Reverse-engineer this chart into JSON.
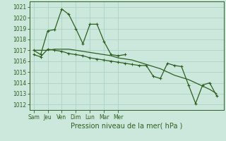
{
  "xlabel": "Pression niveau de la mer( hPa )",
  "bg_color": "#cce8dc",
  "grid_color": "#aad4c4",
  "line_color": "#2d6020",
  "ylim": [
    1011.5,
    1021.5
  ],
  "yticks": [
    1012,
    1013,
    1014,
    1015,
    1016,
    1017,
    1018,
    1019,
    1020,
    1021
  ],
  "xtick_labels": [
    "Sam",
    "Jeu",
    "Ven",
    "Dim",
    "Lun",
    "Mar",
    "Mer"
  ],
  "xtick_positions": [
    0,
    2,
    4,
    6,
    8,
    10,
    12
  ],
  "xlim": [
    -0.3,
    13.5
  ],
  "series_jagged_upper_x": [
    0,
    1,
    2,
    3,
    4,
    5,
    6,
    7,
    8,
    9,
    10,
    11,
    12,
    13
  ],
  "series_jagged_upper_y": [
    1017.0,
    1016.6,
    1018.8,
    1018.9,
    1020.8,
    1020.3,
    1019.0,
    1017.6,
    1019.4,
    1019.4,
    1017.8,
    1016.6,
    1016.5,
    1016.6
  ],
  "series_smooth_x": [
    0,
    0.5,
    1,
    1.5,
    2,
    2.5,
    3,
    3.5,
    4,
    4.5,
    5,
    5.5,
    6,
    6.5,
    7,
    7.5,
    8,
    8.5,
    9,
    9.5,
    10,
    10.5,
    11,
    11.5,
    12,
    12.5,
    13
  ],
  "series_smooth_y": [
    1017.0,
    1017.0,
    1017.0,
    1017.1,
    1017.1,
    1017.1,
    1017.0,
    1016.9,
    1016.8,
    1016.7,
    1016.6,
    1016.5,
    1016.3,
    1016.2,
    1016.1,
    1015.9,
    1015.7,
    1015.5,
    1015.3,
    1015.0,
    1014.7,
    1014.5,
    1014.3,
    1014.0,
    1013.7,
    1013.4,
    1013.0
  ],
  "series_jagged_lower_x": [
    0,
    1,
    2,
    3,
    4,
    5,
    6,
    7,
    8,
    9,
    10,
    11,
    12,
    13,
    14,
    15,
    16,
    17,
    18,
    19,
    20,
    21,
    22,
    23,
    24,
    25,
    26
  ],
  "series_jagged_lower_y": [
    1016.6,
    1016.4,
    1017.1,
    1017.0,
    1016.9,
    1016.7,
    1016.6,
    1016.5,
    1016.3,
    1016.2,
    1016.1,
    1016.0,
    1015.9,
    1015.8,
    1015.7,
    1015.6,
    1015.6,
    1014.6,
    1014.4,
    1015.8,
    1015.6,
    1015.5,
    1013.8,
    1012.1,
    1013.8,
    1014.0,
    1012.8
  ]
}
